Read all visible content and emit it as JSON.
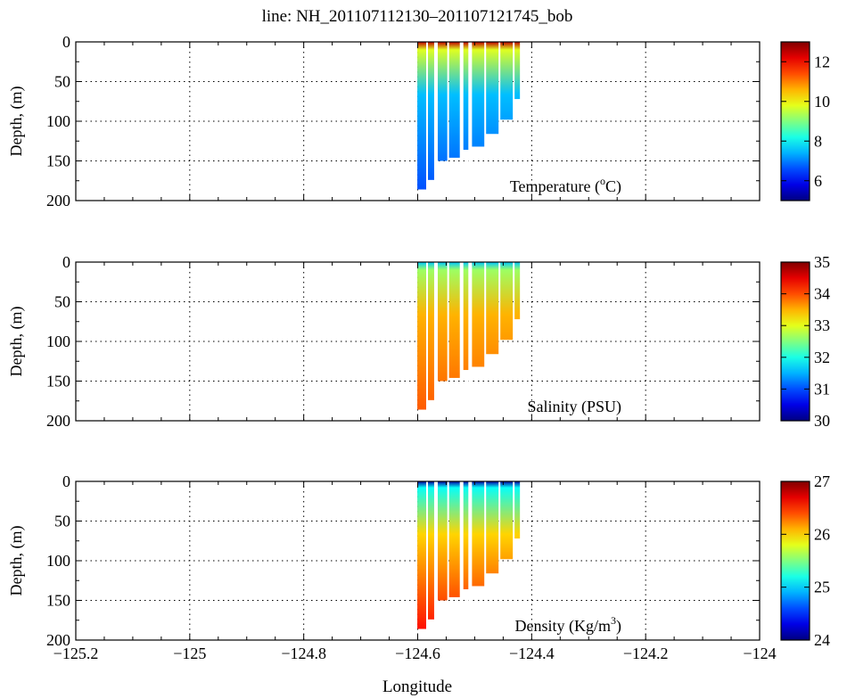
{
  "figure": {
    "title": "line: NH_201107112130–201107121745_bob",
    "xlabel": "Longitude"
  },
  "chart_data": [
    {
      "type": "heatmap",
      "annotation": "Temperature (",
      "annotation_sup": "o",
      "annotation_end": "C)",
      "ylabel": "Depth, (m)",
      "xlim": [
        -125.2,
        -124.0
      ],
      "ylim": [
        200,
        0
      ],
      "xticks": [
        -125.2,
        -125.0,
        -124.8,
        -124.6,
        -124.4,
        -124.2,
        -124.0
      ],
      "yticks": [
        0,
        50,
        100,
        150,
        200
      ],
      "grid": true,
      "colorbar": {
        "min": 5,
        "max": 13,
        "ticks": [
          6,
          8,
          10,
          12
        ],
        "colormap": "jet"
      },
      "surface_value": 12.5,
      "mixed_depth": 10,
      "deep_value": 7.5,
      "bottom_value": 6.6,
      "bottom_depth": 190,
      "profiles": [
        {
          "lon": -124.596,
          "max_depth": 186
        },
        {
          "lon": -124.582,
          "max_depth": 174
        },
        {
          "lon": -124.565,
          "max_depth": 150
        },
        {
          "lon": -124.545,
          "max_depth": 146
        },
        {
          "lon": -124.522,
          "max_depth": 136
        },
        {
          "lon": -124.505,
          "max_depth": 132
        },
        {
          "lon": -124.48,
          "max_depth": 116
        },
        {
          "lon": -124.455,
          "max_depth": 98
        },
        {
          "lon": -124.43,
          "max_depth": 72
        }
      ]
    },
    {
      "type": "heatmap",
      "annotation": "Salinity (PSU)",
      "ylabel": "Depth, (m)",
      "xlim": [
        -125.2,
        -124.0
      ],
      "ylim": [
        200,
        0
      ],
      "xticks": [
        -125.2,
        -125.0,
        -124.8,
        -124.6,
        -124.4,
        -124.2,
        -124.0
      ],
      "yticks": [
        0,
        50,
        100,
        150,
        200
      ],
      "grid": true,
      "colorbar": {
        "min": 30,
        "max": 35,
        "ticks": [
          30,
          31,
          32,
          33,
          34,
          35
        ],
        "colormap": "jet"
      },
      "surface_value": 31.6,
      "mixed_depth": 10,
      "deep_value": 33.5,
      "bottom_value": 33.95,
      "bottom_depth": 190,
      "profiles": [
        {
          "lon": -124.596,
          "max_depth": 186
        },
        {
          "lon": -124.582,
          "max_depth": 174
        },
        {
          "lon": -124.565,
          "max_depth": 150
        },
        {
          "lon": -124.545,
          "max_depth": 146
        },
        {
          "lon": -124.522,
          "max_depth": 136
        },
        {
          "lon": -124.505,
          "max_depth": 132
        },
        {
          "lon": -124.48,
          "max_depth": 116
        },
        {
          "lon": -124.455,
          "max_depth": 98
        },
        {
          "lon": -124.43,
          "max_depth": 72
        }
      ]
    },
    {
      "type": "heatmap",
      "annotation": "Density (Kg/m",
      "annotation_sup": "3",
      "annotation_end": ")",
      "ylabel": "Depth, (m)",
      "xlim": [
        -125.2,
        -124.0
      ],
      "ylim": [
        200,
        0
      ],
      "xticks": [
        -125.2,
        -125.0,
        -124.8,
        -124.6,
        -124.4,
        -124.2,
        -124.0
      ],
      "yticks": [
        0,
        50,
        100,
        150,
        200
      ],
      "grid": true,
      "colorbar": {
        "min": 24,
        "max": 27,
        "ticks": [
          24,
          25,
          26,
          27
        ],
        "colormap": "jet"
      },
      "surface_value": 24.1,
      "mixed_depth": 8,
      "deep_value": 26.0,
      "bottom_value": 26.6,
      "bottom_depth": 190,
      "profiles": [
        {
          "lon": -124.596,
          "max_depth": 186
        },
        {
          "lon": -124.582,
          "max_depth": 174
        },
        {
          "lon": -124.565,
          "max_depth": 150
        },
        {
          "lon": -124.545,
          "max_depth": 146
        },
        {
          "lon": -124.522,
          "max_depth": 136
        },
        {
          "lon": -124.505,
          "max_depth": 132
        },
        {
          "lon": -124.48,
          "max_depth": 116
        },
        {
          "lon": -124.455,
          "max_depth": 98
        },
        {
          "lon": -124.43,
          "max_depth": 72
        }
      ]
    }
  ]
}
